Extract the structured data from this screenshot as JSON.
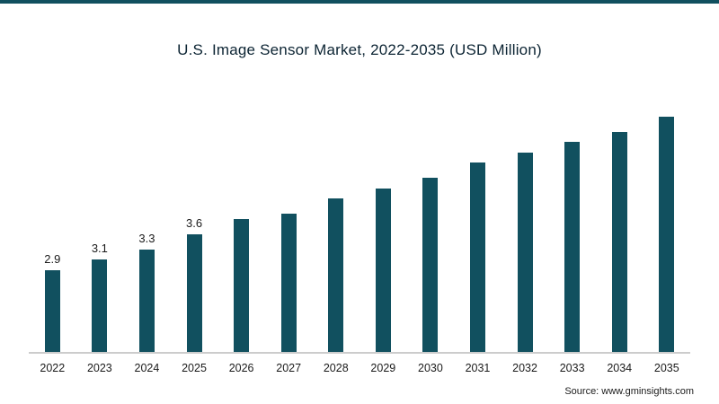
{
  "colors": {
    "accent": "#11505f",
    "title": "#0c2433",
    "text": "#1b1b1b",
    "axis": "#cccccc"
  },
  "source_note": "Source: www.gminsights.com",
  "chart_data": {
    "type": "bar",
    "title": "U.S. Image Sensor Market, 2022-2035 (USD Million)",
    "xlabel": "",
    "ylabel": "",
    "categories": [
      "2022",
      "2023",
      "2024",
      "2025",
      "2026",
      "2027",
      "2028",
      "2029",
      "2030",
      "2031",
      "2032",
      "2033",
      "2034",
      "2035"
    ],
    "values": [
      2.9,
      3.1,
      3.3,
      3.6,
      3.9,
      4.0,
      4.3,
      4.5,
      4.7,
      5.0,
      5.2,
      5.4,
      5.6,
      5.9
    ],
    "value_labels": [
      "2.9",
      "3.1",
      "3.3",
      "3.6",
      "",
      "",
      "",
      "",
      "",
      "",
      "",
      "",
      "",
      ""
    ],
    "bar_color": "#11505f",
    "ylim": [
      1.3,
      5.9
    ],
    "grid": false,
    "legend": "none",
    "note": "Values for 2026-2035 estimated from bar heights; only 2022-2025 carry printed data labels"
  }
}
